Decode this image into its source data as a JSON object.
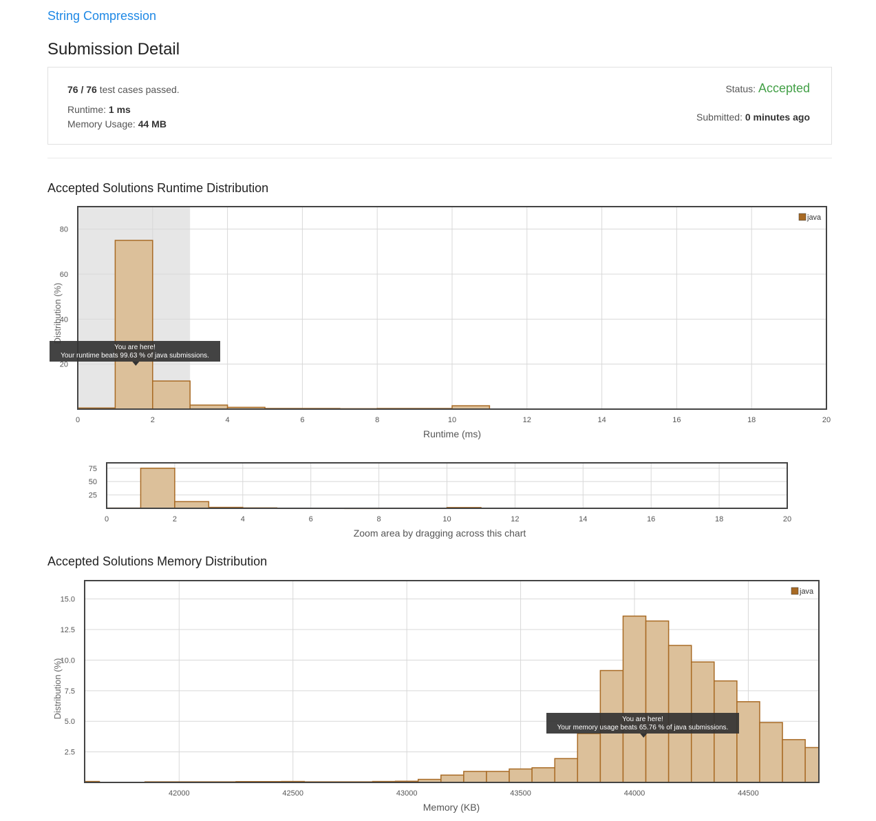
{
  "header": {
    "problem_title": "String Compression",
    "page_title": "Submission Detail"
  },
  "summary": {
    "cases_passed": "76 / 76",
    "cases_suffix": "test cases passed.",
    "runtime_label": "Runtime:",
    "runtime_value": "1 ms",
    "memory_label": "Memory Usage:",
    "memory_value": "44 MB",
    "status_label": "Status:",
    "status_value": "Accepted",
    "submitted_label": "Submitted:",
    "submitted_value": "0 minutes ago"
  },
  "colors": {
    "link": "#1e88e5",
    "accepted": "#43a047",
    "bar_fill": "#dcc09a",
    "bar_stroke": "#a86a24",
    "legend_swatch": "#a86a24"
  },
  "runtime_section": {
    "title": "Accepted Solutions Runtime Distribution",
    "tooltip_line1": "You are here!",
    "tooltip_line2": "Your runtime beats 99.63 % of java submissions.",
    "navigator_caption": "Zoom area by dragging across this chart"
  },
  "memory_section": {
    "title": "Accepted Solutions Memory Distribution",
    "tooltip_line1": "You are here!",
    "tooltip_line2": "Your memory usage beats 65.76 % of java submissions."
  },
  "chart_data": [
    {
      "type": "bar",
      "title": "",
      "xlabel": "Runtime (ms)",
      "ylabel": "Distribution (%)",
      "xlim": [
        0,
        20
      ],
      "ylim": [
        0,
        90
      ],
      "xticks": [
        "0",
        "2",
        "4",
        "6",
        "8",
        "10",
        "12",
        "14",
        "16",
        "18",
        "20"
      ],
      "yticks": [
        "20",
        "40",
        "60",
        "80"
      ],
      "legend": "java",
      "legend_position": "top-right",
      "grid": true,
      "highlight_range": [
        0,
        3
      ],
      "bars": [
        {
          "x0": 0,
          "x1": 1,
          "value": 0.5
        },
        {
          "x0": 1,
          "x1": 2,
          "value": 75.0
        },
        {
          "x0": 2,
          "x1": 3,
          "value": 12.5
        },
        {
          "x0": 3,
          "x1": 4,
          "value": 1.8
        },
        {
          "x0": 4,
          "x1": 5,
          "value": 0.8
        },
        {
          "x0": 5,
          "x1": 7,
          "value": 0.3
        },
        {
          "x0": 7,
          "x1": 8,
          "value": 0.2
        },
        {
          "x0": 8,
          "x1": 10,
          "value": 0.3
        },
        {
          "x0": 10,
          "x1": 11,
          "value": 1.5
        }
      ],
      "marker_x": 1.55
    },
    {
      "type": "bar",
      "title": "",
      "xlabel": "Zoom area by dragging across this chart",
      "ylabel": "",
      "xlim": [
        0,
        20
      ],
      "ylim": [
        0,
        85
      ],
      "xticks": [
        "0",
        "2",
        "4",
        "6",
        "8",
        "10",
        "12",
        "14",
        "16",
        "18",
        "20"
      ],
      "yticks": [
        "25",
        "50",
        "75"
      ],
      "grid": true,
      "bars": [
        {
          "x0": 0,
          "x1": 1,
          "value": 0.5
        },
        {
          "x0": 1,
          "x1": 2,
          "value": 75.0
        },
        {
          "x0": 2,
          "x1": 3,
          "value": 12.5
        },
        {
          "x0": 3,
          "x1": 4,
          "value": 1.8
        },
        {
          "x0": 4,
          "x1": 5,
          "value": 0.8
        },
        {
          "x0": 5,
          "x1": 7,
          "value": 0.3
        },
        {
          "x0": 7,
          "x1": 8,
          "value": 0.2
        },
        {
          "x0": 8,
          "x1": 10,
          "value": 0.3
        },
        {
          "x0": 10,
          "x1": 11,
          "value": 1.5
        }
      ]
    },
    {
      "type": "bar",
      "title": "",
      "xlabel": "Memory (KB)",
      "ylabel": "Distribution (%)",
      "xlim": [
        41585,
        44810
      ],
      "ylim": [
        0,
        16.5
      ],
      "xticks": [
        "42000",
        "42500",
        "43000",
        "43500",
        "44000",
        "44500"
      ],
      "yticks": [
        "2.5",
        "5.0",
        "7.5",
        "10.0",
        "12.5",
        "15.0"
      ],
      "legend": "java",
      "legend_position": "top-right",
      "grid": true,
      "bars": [
        {
          "x0": 41585,
          "x1": 41650,
          "value": 0.08
        },
        {
          "x0": 41850,
          "x1": 42250,
          "value": 0.05
        },
        {
          "x0": 42250,
          "x1": 42450,
          "value": 0.07
        },
        {
          "x0": 42450,
          "x1": 42550,
          "value": 0.08
        },
        {
          "x0": 42550,
          "x1": 42850,
          "value": 0.05
        },
        {
          "x0": 42850,
          "x1": 42950,
          "value": 0.08
        },
        {
          "x0": 42950,
          "x1": 43050,
          "value": 0.1
        },
        {
          "x0": 43050,
          "x1": 43150,
          "value": 0.25
        },
        {
          "x0": 43150,
          "x1": 43250,
          "value": 0.6
        },
        {
          "x0": 43250,
          "x1": 43350,
          "value": 0.9
        },
        {
          "x0": 43350,
          "x1": 43450,
          "value": 0.9
        },
        {
          "x0": 43450,
          "x1": 43550,
          "value": 1.1
        },
        {
          "x0": 43550,
          "x1": 43650,
          "value": 1.2
        },
        {
          "x0": 43650,
          "x1": 43750,
          "value": 1.95
        },
        {
          "x0": 43750,
          "x1": 43850,
          "value": 4.0
        },
        {
          "x0": 43850,
          "x1": 43950,
          "value": 9.15
        },
        {
          "x0": 43950,
          "x1": 44050,
          "value": 13.6
        },
        {
          "x0": 44050,
          "x1": 44150,
          "value": 13.2
        },
        {
          "x0": 44150,
          "x1": 44250,
          "value": 11.2
        },
        {
          "x0": 44250,
          "x1": 44350,
          "value": 9.85
        },
        {
          "x0": 44350,
          "x1": 44450,
          "value": 8.3
        },
        {
          "x0": 44450,
          "x1": 44550,
          "value": 6.6
        },
        {
          "x0": 44550,
          "x1": 44650,
          "value": 4.9
        },
        {
          "x0": 44650,
          "x1": 44750,
          "value": 3.5
        },
        {
          "x0": 44750,
          "x1": 44810,
          "value": 2.85
        }
      ],
      "marker_x": 44040
    }
  ]
}
